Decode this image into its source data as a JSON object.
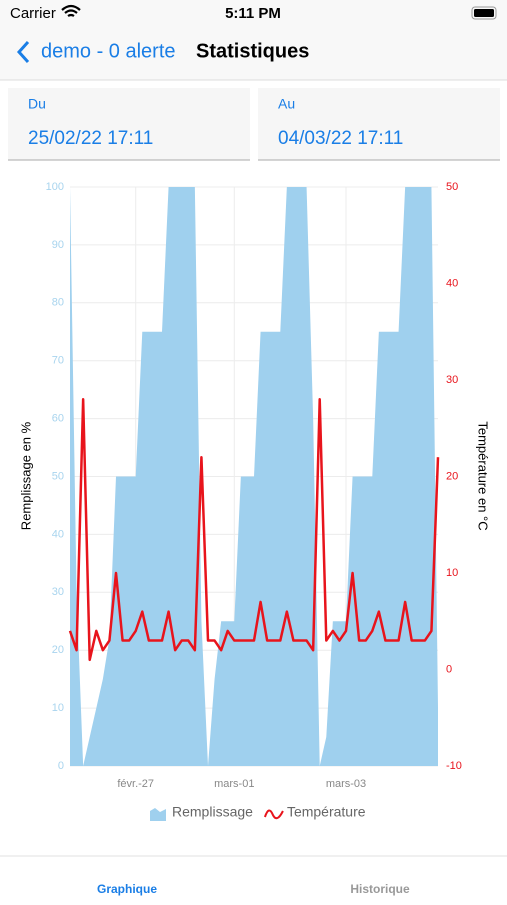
{
  "status_bar": {
    "carrier": "Carrier",
    "time": "5:11 PM"
  },
  "nav": {
    "back": "demo - 0 alerte",
    "title": "Statistiques"
  },
  "filters": {
    "from_label": "Du",
    "from_value": "25/02/22 17:11",
    "to_label": "Au",
    "to_value": "04/03/22 17:11"
  },
  "chart_data": {
    "type": "area-line",
    "ylabel": "Remplissage en %",
    "y2label": "Température en °C",
    "categories": [
      null,
      null,
      null,
      null,
      null,
      null,
      null,
      null,
      null,
      null,
      "févr.-27",
      null,
      null,
      null,
      null,
      null,
      null,
      null,
      null,
      null,
      null,
      null,
      null,
      null,
      null,
      "mars-01",
      null,
      null,
      null,
      null,
      null,
      null,
      null,
      null,
      null,
      null,
      null,
      null,
      null,
      null,
      null,
      null,
      "mars-03",
      null,
      null,
      null,
      null,
      null,
      null,
      null,
      null,
      null,
      null,
      null,
      null,
      null,
      null
    ],
    "series": [
      {
        "name": "Remplissage",
        "color": "#9fd0ee",
        "kind": "area",
        "values": [
          100,
          30,
          0,
          5,
          10,
          15,
          22,
          50,
          50,
          50,
          50,
          75,
          75,
          75,
          75,
          100,
          100,
          100,
          100,
          100,
          25,
          0,
          15,
          25,
          25,
          25,
          50,
          50,
          50,
          75,
          75,
          75,
          75,
          100,
          100,
          100,
          100,
          60,
          0,
          5,
          25,
          25,
          25,
          50,
          50,
          50,
          50,
          75,
          75,
          75,
          75,
          100,
          100,
          100,
          100,
          100,
          10
        ]
      },
      {
        "name": "Température",
        "color": "#e8141c",
        "kind": "line",
        "axis": "y2",
        "values": [
          4,
          2,
          28,
          1,
          4,
          2,
          3,
          10,
          3,
          3,
          4,
          6,
          3,
          3,
          3,
          6,
          2,
          3,
          3,
          2,
          22,
          3,
          3,
          2,
          4,
          3,
          3,
          3,
          3,
          7,
          3,
          3,
          3,
          6,
          3,
          3,
          3,
          2,
          28,
          3,
          4,
          3,
          4,
          10,
          3,
          3,
          4,
          6,
          3,
          3,
          3,
          7,
          3,
          3,
          3,
          4,
          22
        ]
      }
    ],
    "ylim": [
      0,
      100
    ],
    "yticks": [
      0,
      10,
      20,
      30,
      40,
      50,
      60,
      70,
      80,
      90,
      100
    ],
    "y2lim": [
      -10,
      50
    ],
    "y2ticks": [
      -10,
      0,
      10,
      20,
      30,
      40,
      50
    ],
    "grid": true,
    "legend": "bottom"
  },
  "tabs": {
    "items": [
      "Graphique",
      "Historique"
    ],
    "active": 0
  }
}
